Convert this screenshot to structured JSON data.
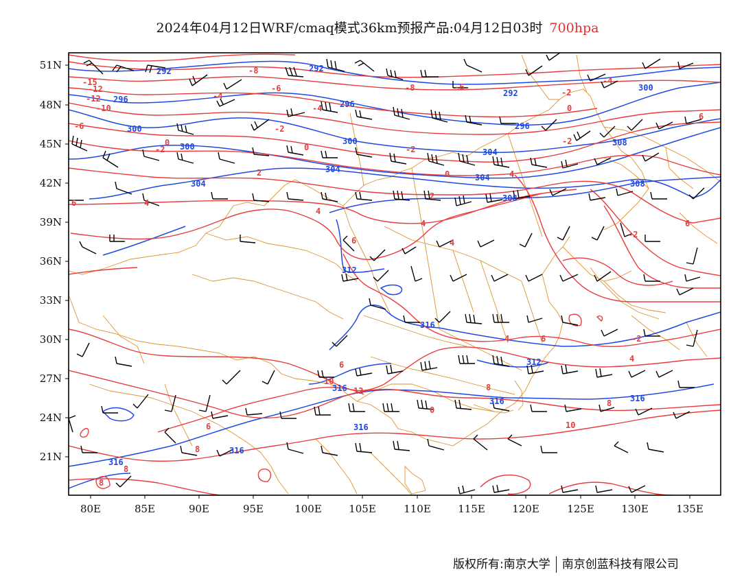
{
  "title": {
    "main": "2024年04月12日WRF/cmaq模式36km预报产品:04月12日03时",
    "level": "700hpa"
  },
  "axes": {
    "lat_labels": [
      "51N",
      "48N",
      "45N",
      "42N",
      "39N",
      "36N",
      "33N",
      "30N",
      "27N",
      "24N",
      "21N"
    ],
    "lon_labels": [
      "80E",
      "85E",
      "90E",
      "95E",
      "100E",
      "105E",
      "110E",
      "115E",
      "120E",
      "125E",
      "130E",
      "135E"
    ]
  },
  "legend_colors": {
    "temperature": "#e83c3c",
    "geopotential": "#1f49e0",
    "boundary": "#e0922f",
    "wind_barb": "#000000"
  },
  "contours": {
    "geopotential_labels": [
      "292",
      "292",
      "292",
      "296",
      "296",
      "296",
      "300",
      "300",
      "300",
      "300",
      "304",
      "304",
      "304",
      "304",
      "308",
      "308",
      "308",
      "312",
      "312",
      "316",
      "316",
      "316",
      "316",
      "316"
    ],
    "temperature_labels": [
      "-15",
      "-12",
      "-12",
      "-10",
      "-8",
      "-8",
      "-6",
      "-6",
      "-6",
      "-4",
      "-4",
      "-4",
      "-2",
      "-2",
      "-2",
      "-2",
      "-2",
      "-2",
      "0",
      "0",
      "0",
      "0",
      "2",
      "2",
      "4",
      "4",
      "4",
      "4",
      "4",
      "6",
      "6",
      "6",
      "6",
      "8",
      "8",
      "8",
      "8",
      "8",
      "8",
      "10",
      "10",
      "12",
      "12",
      "12"
    ]
  },
  "footer": {
    "copyright": "版权所有:南京大学",
    "company": "南京创蓝科技有限公司"
  }
}
